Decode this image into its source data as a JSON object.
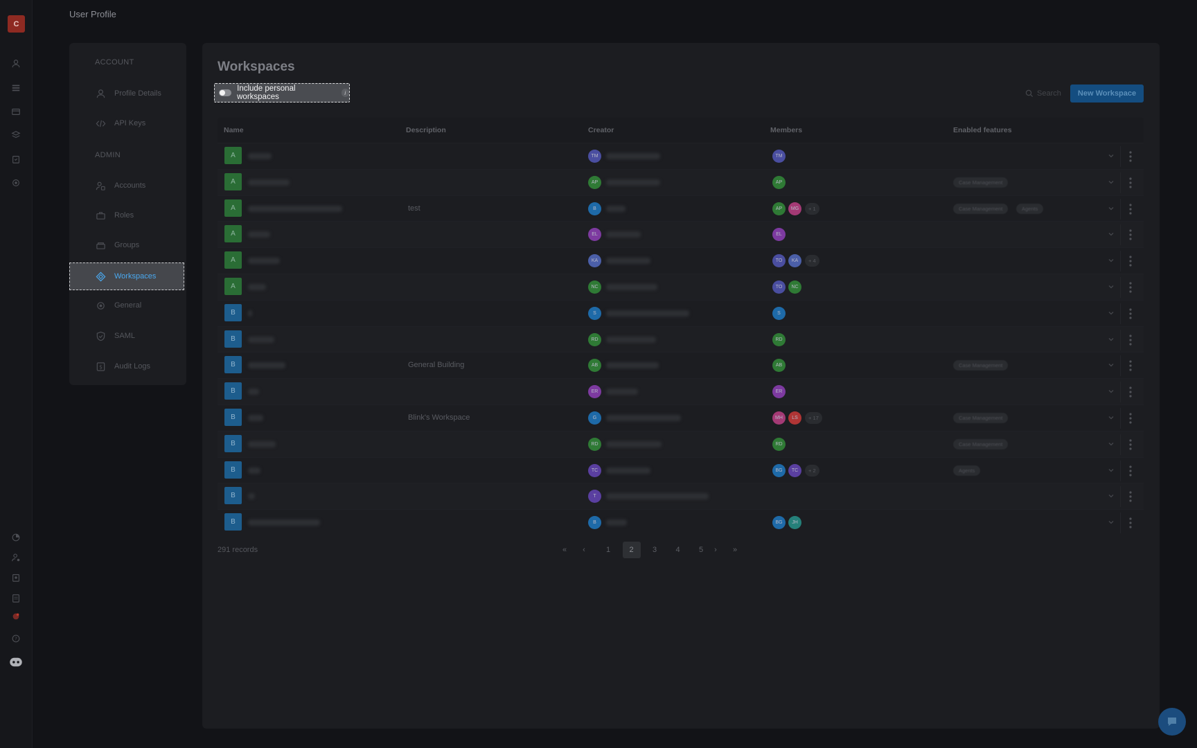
{
  "app": {
    "logo_letter": "C",
    "page_title": "User Profile"
  },
  "rail_icons": [
    "person-icon",
    "list-icon",
    "folder-icon",
    "layers-icon",
    "clipboard-icon",
    "gear-icon",
    "pie-chart-icon",
    "user-gear-icon",
    "badge-icon",
    "document-icon",
    "notification-icon",
    "help-icon",
    "assistant-icon"
  ],
  "settings_nav": {
    "account_label": "ACCOUNT",
    "admin_label": "ADMIN",
    "account_items": [
      {
        "label": "Profile Details",
        "icon": "person-icon"
      },
      {
        "label": "API Keys",
        "icon": "code-icon"
      }
    ],
    "admin_items": [
      {
        "label": "Accounts",
        "icon": "accounts-icon"
      },
      {
        "label": "Roles",
        "icon": "briefcase-icon"
      },
      {
        "label": "Groups",
        "icon": "groups-icon"
      },
      {
        "label": "Workspaces",
        "icon": "diamond-icon",
        "active": true
      },
      {
        "label": "General",
        "icon": "gear-icon"
      },
      {
        "label": "SAML",
        "icon": "shield-icon"
      },
      {
        "label": "Audit Logs",
        "icon": "dollar-doc-icon"
      }
    ]
  },
  "main": {
    "title": "Workspaces",
    "toggle_label": "Include personal workspaces",
    "info": "i",
    "search_placeholder": "Search",
    "new_button": "New Workspace"
  },
  "table": {
    "columns": [
      "Name",
      "Description",
      "Creator",
      "Members",
      "Enabled features"
    ],
    "rows": [
      {
        "letter": "A",
        "color": "g",
        "description": "",
        "creator": "TM",
        "creator_color": "#4a4ea0",
        "members": [
          [
            "TM",
            "#4a4ea0"
          ]
        ],
        "plus": "",
        "features": []
      },
      {
        "letter": "A",
        "color": "g",
        "description": "",
        "creator": "AP",
        "creator_color": "#2f7a35",
        "members": [
          [
            "AP",
            "#2f7a35"
          ]
        ],
        "plus": "",
        "features": [
          "Case Management"
        ]
      },
      {
        "letter": "A",
        "color": "g",
        "description": "test",
        "creator": "B",
        "creator_color": "#1e6aa8",
        "members": [
          [
            "AP",
            "#2f7a35"
          ],
          [
            "MG",
            "#a43a75"
          ]
        ],
        "plus": "+ 1",
        "features": [
          "Case Management",
          "Agents"
        ]
      },
      {
        "letter": "A",
        "color": "g",
        "description": "",
        "creator": "EL",
        "creator_color": "#7d3aa0",
        "members": [
          [
            "EL",
            "#7d3aa0"
          ]
        ],
        "plus": "",
        "features": []
      },
      {
        "letter": "A",
        "color": "g",
        "description": "",
        "creator": "KA",
        "creator_color": "#4b5fa8",
        "members": [
          [
            "TO",
            "#4a4ea0"
          ],
          [
            "KA",
            "#4b5fa8"
          ]
        ],
        "plus": "+ 4",
        "features": []
      },
      {
        "letter": "A",
        "color": "g",
        "description": "",
        "creator": "NC",
        "creator_color": "#2f7a35",
        "members": [
          [
            "TO",
            "#4a4ea0"
          ],
          [
            "NC",
            "#2f7a35"
          ]
        ],
        "plus": "",
        "features": []
      },
      {
        "letter": "B",
        "color": "b",
        "description": "",
        "creator": "S",
        "creator_color": "#1e6aa8",
        "members": [
          [
            "S",
            "#1e6aa8"
          ]
        ],
        "plus": "",
        "features": []
      },
      {
        "letter": "B",
        "color": "b",
        "description": "",
        "creator": "RD",
        "creator_color": "#2f7a35",
        "members": [
          [
            "RD",
            "#2f7a35"
          ]
        ],
        "plus": "",
        "features": []
      },
      {
        "letter": "B",
        "color": "b",
        "description": "General Building",
        "creator": "AB",
        "creator_color": "#2f7a35",
        "members": [
          [
            "AB",
            "#2f7a35"
          ]
        ],
        "plus": "",
        "features": [
          "Case Management"
        ]
      },
      {
        "letter": "B",
        "color": "b",
        "description": "",
        "creator": "ER",
        "creator_color": "#7d3aa0",
        "members": [
          [
            "ER",
            "#7d3aa0"
          ]
        ],
        "plus": "",
        "features": []
      },
      {
        "letter": "B",
        "color": "b",
        "description": "Blink's Workspace",
        "creator": "G",
        "creator_color": "#1e6aa8",
        "members": [
          [
            "MH",
            "#a43a75"
          ],
          [
            "LS",
            "#b03535"
          ]
        ],
        "plus": "+ 17",
        "features": [
          "Case Management"
        ]
      },
      {
        "letter": "B",
        "color": "b",
        "description": "",
        "creator": "RD",
        "creator_color": "#2f7a35",
        "members": [
          [
            "RD",
            "#2f7a35"
          ]
        ],
        "plus": "",
        "features": [
          "Case Management"
        ]
      },
      {
        "letter": "B",
        "color": "b",
        "description": "",
        "creator": "TC",
        "creator_color": "#5a3fa0",
        "members": [
          [
            "BG",
            "#1e6aa8"
          ],
          [
            "TC",
            "#5a3fa0"
          ]
        ],
        "plus": "+ 2",
        "features": [
          "Agents"
        ]
      },
      {
        "letter": "B",
        "color": "b",
        "description": "",
        "creator": "T",
        "creator_color": "#5a3fa0",
        "members": [],
        "plus": "",
        "features": []
      },
      {
        "letter": "B",
        "color": "b",
        "description": "",
        "creator": "B",
        "creator_color": "#1e6aa8",
        "members": [
          [
            "BG",
            "#1e6aa8"
          ],
          [
            "JH",
            "#25807a"
          ]
        ],
        "plus": "",
        "features": []
      }
    ]
  },
  "footer": {
    "records": "291 records",
    "pages": [
      "1",
      "2",
      "3",
      "4",
      "5"
    ],
    "active_page": "2"
  }
}
